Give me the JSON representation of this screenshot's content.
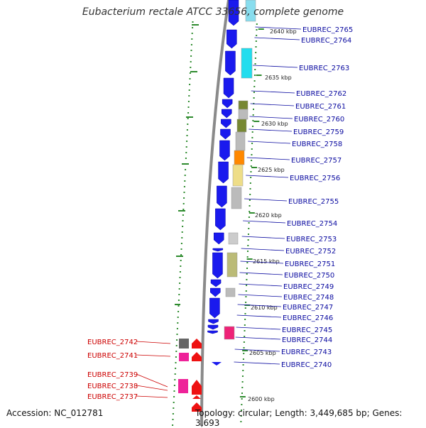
{
  "title": "Eubacterium rectale ATCC 33656, complete genome",
  "footer": {
    "accession": "Accession: NC_012781",
    "summary": "Topology: circular; Length: 3,449,685 bp; Genes: 3,693"
  },
  "scale": {
    "unit": "kbp",
    "marks": [
      "2640 kbp",
      "2635 kbp",
      "2630 kbp",
      "2625 kbp",
      "2620 kbp",
      "2615 kbp",
      "2610 kbp",
      "2605 kbp",
      "2600 kbp"
    ]
  },
  "colors": {
    "forward_strand": "#1a1aee",
    "reverse_strand": "#ee1111",
    "forward_label": "#0a0aa0",
    "reverse_label": "#cc0000",
    "backbone": "#8a8a8a",
    "gc_dots": "#2e8b2e"
  },
  "genes_forward": [
    "EUBREC_2765",
    "EUBREC_2764",
    "EUBREC_2763",
    "EUBREC_2762",
    "EUBREC_2761",
    "EUBREC_2760",
    "EUBREC_2759",
    "EUBREC_2758",
    "EUBREC_2757",
    "EUBREC_2756",
    "EUBREC_2755",
    "EUBREC_2754",
    "EUBREC_2753",
    "EUBREC_2752",
    "EUBREC_2751",
    "EUBREC_2750",
    "EUBREC_2749",
    "EUBREC_2748",
    "EUBREC_2747",
    "EUBREC_2746",
    "EUBREC_2745",
    "EUBREC_2744",
    "EUBREC_2743",
    "EUBREC_2740"
  ],
  "genes_reverse": [
    "EUBREC_2742",
    "EUBREC_2741",
    "EUBREC_2739",
    "EUBREC_2738",
    "EUBREC_2737"
  ]
}
